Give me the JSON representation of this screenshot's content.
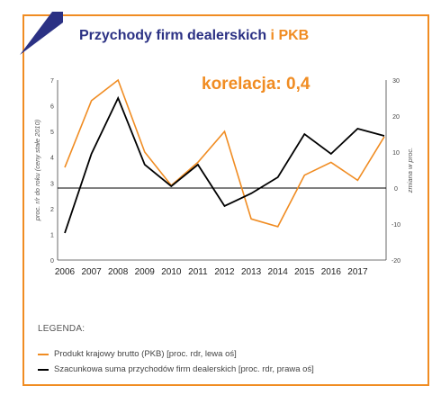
{
  "header": {
    "title_main": "Przychody firm dealerskich",
    "title_sep": "i",
    "title_pkb": "PKB"
  },
  "annotation": "korelacja: 0,4",
  "colors": {
    "accent": "#f08c22",
    "brand": "#2b3184",
    "series_black": "#000000",
    "zero_line": "#000000"
  },
  "legend": {
    "title": "LEGENDA:",
    "items": [
      {
        "label": "Produkt krajowy brutto (PKB) [proc. rdr, lewa oś]",
        "color": "#f08c22"
      },
      {
        "label": "Szacunkowa suma przychodów firm dealerskich [proc. rdr, prawa oś]",
        "color": "#000000"
      }
    ]
  },
  "chart_data": {
    "type": "line",
    "x": [
      "2006",
      "2007",
      "2008",
      "2009",
      "2010",
      "2011",
      "2012",
      "2013",
      "2014",
      "2015",
      "2016",
      "2017",
      ""
    ],
    "ylabel": "proc. r/r do roku (ceny stałe 2010)",
    "y2label": "zmiana w proc.",
    "ylim": [
      0,
      7
    ],
    "y2lim": [
      -20,
      30
    ],
    "yticks": [
      "0",
      "1",
      "2",
      "3",
      "4",
      "5",
      "6",
      "7"
    ],
    "y2ticks": [
      "-20",
      "-10",
      "0",
      "10",
      "20",
      "30"
    ],
    "grid": false,
    "legend_position": "bottom",
    "series": [
      {
        "name": "Produkt krajowy brutto (PKB) [proc. rdr, lewa oś]",
        "axis": "left",
        "color": "#f08c22",
        "values": [
          3.6,
          6.2,
          7.0,
          4.2,
          2.9,
          3.8,
          5.0,
          1.6,
          1.3,
          3.3,
          3.8,
          3.1,
          4.8
        ]
      },
      {
        "name": "Szacunkowa suma przychodów firm dealerskich [proc. rdr, prawa oś]",
        "axis": "right",
        "color": "#000000",
        "values": [
          -12.5,
          9.5,
          25,
          6.5,
          0.5,
          6.5,
          -5,
          -1.5,
          3,
          15,
          9.5,
          16.5,
          14.5
        ]
      }
    ]
  }
}
